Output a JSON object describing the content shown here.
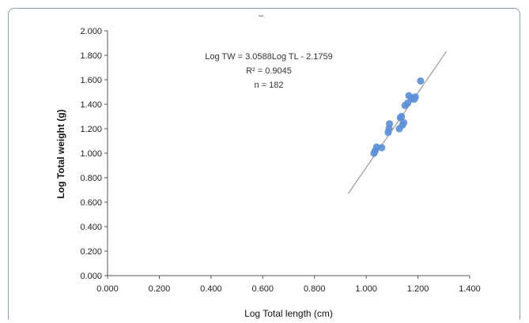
{
  "chart_data": {
    "type": "scatter",
    "title": "–",
    "xlabel": "Log Total length (cm)",
    "ylabel": "Log Total weight (g)",
    "xlim": [
      0,
      1.4
    ],
    "ylim": [
      0,
      2.0
    ],
    "x_ticks": [
      "0.000",
      "0.200",
      "0.400",
      "0.600",
      "0.800",
      "1.000",
      "1.200",
      "1.400"
    ],
    "y_ticks": [
      "0.000",
      "0.200",
      "0.400",
      "0.600",
      "0.800",
      "1.000",
      "1.200",
      "1.400",
      "1.600",
      "1.800",
      "2.000"
    ],
    "grid": false,
    "points": [
      {
        "x": 1.03,
        "y": 1.0
      },
      {
        "x": 1.035,
        "y": 1.02
      },
      {
        "x": 1.04,
        "y": 1.05
      },
      {
        "x": 1.06,
        "y": 1.045
      },
      {
        "x": 1.085,
        "y": 1.17
      },
      {
        "x": 1.088,
        "y": 1.2
      },
      {
        "x": 1.09,
        "y": 1.24
      },
      {
        "x": 1.128,
        "y": 1.2
      },
      {
        "x": 1.132,
        "y": 1.29
      },
      {
        "x": 1.136,
        "y": 1.3
      },
      {
        "x": 1.14,
        "y": 1.23
      },
      {
        "x": 1.145,
        "y": 1.25
      },
      {
        "x": 1.15,
        "y": 1.39
      },
      {
        "x": 1.16,
        "y": 1.41
      },
      {
        "x": 1.165,
        "y": 1.47
      },
      {
        "x": 1.175,
        "y": 1.45
      },
      {
        "x": 1.185,
        "y": 1.44
      },
      {
        "x": 1.19,
        "y": 1.46
      },
      {
        "x": 1.21,
        "y": 1.59
      }
    ],
    "trendline": {
      "slope": 3.0588,
      "intercept": -2.1759,
      "x_range": [
        0.93,
        1.31
      ],
      "color": "#9a9a9a"
    },
    "point_color": "#5b8fd6",
    "annotations": [
      "Log TW = 3.0588Log TL - 2.1759",
      "R² = 0.9045",
      "n = 182"
    ]
  }
}
